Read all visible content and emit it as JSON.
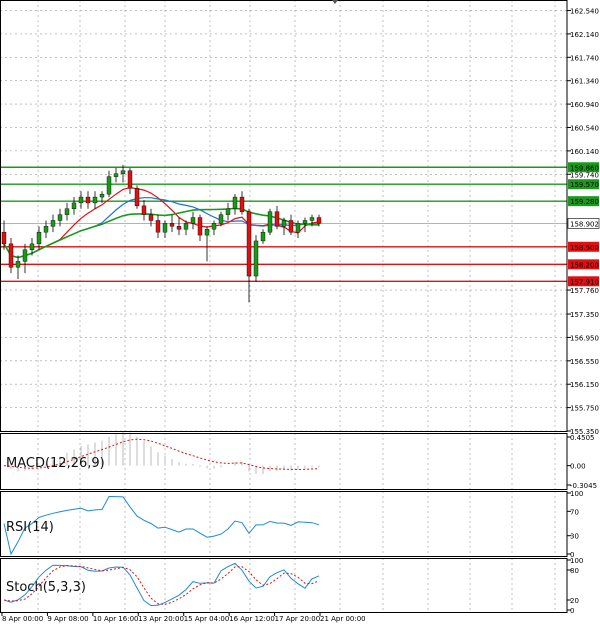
{
  "chart_data": {
    "type": "candlestick",
    "price_panel": {
      "ylim": [
        155.35,
        162.72
      ],
      "y_ticks": [
        "162.540",
        "162.140",
        "161.740",
        "161.340",
        "160.940",
        "160.540",
        "160.140",
        "159.740",
        "157.760",
        "157.350",
        "156.950",
        "156.550",
        "156.150",
        "155.750",
        "155.350"
      ],
      "levels": [
        {
          "value": 159.86,
          "label": "159.860",
          "color": "#1a9a1a"
        },
        {
          "value": 159.57,
          "label": "159.570",
          "color": "#1a9a1a"
        },
        {
          "value": 159.28,
          "label": "159.280",
          "color": "#1a9a1a"
        },
        {
          "value": 158.5,
          "label": "158.500",
          "color": "#e01010"
        },
        {
          "value": 158.2,
          "label": "158.200",
          "color": "#e01010"
        },
        {
          "value": 157.91,
          "label": "157.910",
          "color": "#e01010"
        }
      ],
      "current_price": {
        "value": 158.9,
        "label": "158.902"
      },
      "candles": [
        [
          158.75,
          158.95,
          158.45,
          158.55
        ],
        [
          158.55,
          158.65,
          158.05,
          158.15
        ],
        [
          158.15,
          158.35,
          157.95,
          158.25
        ],
        [
          158.25,
          158.55,
          158.05,
          158.45
        ],
        [
          158.45,
          158.65,
          158.35,
          158.55
        ],
        [
          158.55,
          158.85,
          158.45,
          158.75
        ],
        [
          158.75,
          158.95,
          158.65,
          158.85
        ],
        [
          158.85,
          159.05,
          158.75,
          158.95
        ],
        [
          158.95,
          159.15,
          158.85,
          159.05
        ],
        [
          159.05,
          159.25,
          158.95,
          159.15
        ],
        [
          159.15,
          159.35,
          159.05,
          159.25
        ],
        [
          159.25,
          159.45,
          159.15,
          159.35
        ],
        [
          159.35,
          159.45,
          159.15,
          159.25
        ],
        [
          159.25,
          159.45,
          159.15,
          159.35
        ],
        [
          159.35,
          159.45,
          159.25,
          159.4
        ],
        [
          159.4,
          159.8,
          159.35,
          159.7
        ],
        [
          159.7,
          159.85,
          159.6,
          159.75
        ],
        [
          159.75,
          159.9,
          159.6,
          159.8
        ],
        [
          159.8,
          159.85,
          159.4,
          159.5
        ],
        [
          159.5,
          159.55,
          159.15,
          159.2
        ],
        [
          159.2,
          159.3,
          158.95,
          159.05
        ],
        [
          159.05,
          159.15,
          158.85,
          158.95
        ],
        [
          158.95,
          159.05,
          158.65,
          158.75
        ],
        [
          158.75,
          158.95,
          158.65,
          158.9
        ],
        [
          158.9,
          159.05,
          158.75,
          158.85
        ],
        [
          158.85,
          159.0,
          158.7,
          158.8
        ],
        [
          158.8,
          158.95,
          158.7,
          158.9
        ],
        [
          158.9,
          159.1,
          158.8,
          159.0
        ],
        [
          159.0,
          159.05,
          158.6,
          158.7
        ],
        [
          158.7,
          158.85,
          158.25,
          158.8
        ],
        [
          158.8,
          158.95,
          158.7,
          158.9
        ],
        [
          158.9,
          159.1,
          158.85,
          159.05
        ],
        [
          159.05,
          159.25,
          158.95,
          159.15
        ],
        [
          159.15,
          159.4,
          159.05,
          159.35
        ],
        [
          159.35,
          159.45,
          159.05,
          159.1
        ],
        [
          159.1,
          159.15,
          157.55,
          158.0
        ],
        [
          158.0,
          158.7,
          157.9,
          158.6
        ],
        [
          158.6,
          158.8,
          158.55,
          158.75
        ],
        [
          158.75,
          159.15,
          158.7,
          159.1
        ],
        [
          159.1,
          159.2,
          158.8,
          158.85
        ],
        [
          158.85,
          159.0,
          158.7,
          158.95
        ],
        [
          158.95,
          159.05,
          158.7,
          158.75
        ],
        [
          158.75,
          158.95,
          158.65,
          158.9
        ],
        [
          158.9,
          159.0,
          158.75,
          158.95
        ],
        [
          158.95,
          159.05,
          158.85,
          159.0
        ],
        [
          159.0,
          159.05,
          158.85,
          158.9
        ]
      ]
    },
    "x_labels": [
      "8 Apr 00:00",
      "9 Apr 08:00",
      "10 Apr 16:00",
      "13 Apr 20:00",
      "15 Apr 04:00",
      "16 Apr 12:00",
      "17 Apr 20:00",
      "21 Apr 00:00"
    ],
    "macd": {
      "title": "MACD(12,26,9)",
      "ylim": [
        -0.3045,
        0.4505
      ],
      "y_ticks": [
        "0.4505",
        "0.00",
        "-0.3045"
      ]
    },
    "rsi": {
      "title": "RSI(14)",
      "ylim": [
        0,
        100
      ],
      "y_ticks": [
        "100",
        "70",
        "30",
        "0"
      ]
    },
    "stoch": {
      "title": "Stoch(5,3,3)",
      "ylim": [
        0,
        100
      ],
      "y_ticks": [
        "100",
        "80",
        "20",
        "0"
      ]
    }
  }
}
